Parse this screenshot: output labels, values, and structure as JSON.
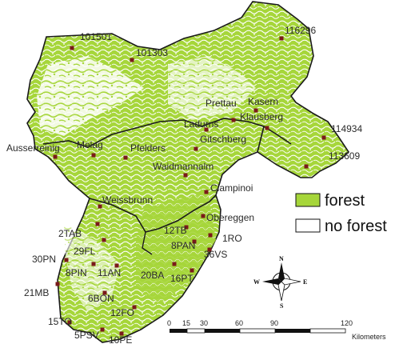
{
  "legend": {
    "items": [
      {
        "label": "forest",
        "color": "#a6d63a"
      },
      {
        "label": "no forest",
        "color": "#ffffff"
      }
    ]
  },
  "stations": [
    {
      "label": "101501"
    },
    {
      "label": "101303"
    },
    {
      "label": "116296"
    },
    {
      "label": "Prettau"
    },
    {
      "label": "Kasern"
    },
    {
      "label": "Klausberg"
    },
    {
      "label": "114934"
    },
    {
      "label": "113609"
    },
    {
      "label": "Ladurns"
    },
    {
      "label": "Gitschberg"
    },
    {
      "label": "Pfelders"
    },
    {
      "label": "Melag"
    },
    {
      "label": "Ausserreinig"
    },
    {
      "label": "Waidmannalm"
    },
    {
      "label": "Ciampinoi"
    },
    {
      "label": "Weissbrunn"
    },
    {
      "label": "Obereggen"
    },
    {
      "label": "1RO"
    },
    {
      "label": "8PAN"
    },
    {
      "label": "12TB"
    },
    {
      "label": "36VS"
    },
    {
      "label": "2TAB"
    },
    {
      "label": "29FL"
    },
    {
      "label": "30PN"
    },
    {
      "label": "8PIN"
    },
    {
      "label": "11AN"
    },
    {
      "label": "20BA"
    },
    {
      "label": "16PT"
    },
    {
      "label": "21MB"
    },
    {
      "label": "6BON"
    },
    {
      "label": "12FO"
    },
    {
      "label": "15TO"
    },
    {
      "label": "5PSV"
    },
    {
      "label": "10PE"
    }
  ],
  "compass": {
    "n": "N",
    "s": "S",
    "e": "E",
    "w": "W"
  },
  "scalebar": {
    "ticks": [
      "0",
      "15",
      "30",
      "60",
      "90",
      "120"
    ],
    "unit": "Kilometers"
  },
  "colors": {
    "forest": "#a6d63a",
    "boundary": "#1a1a1a",
    "station": "#7a1a1a"
  }
}
